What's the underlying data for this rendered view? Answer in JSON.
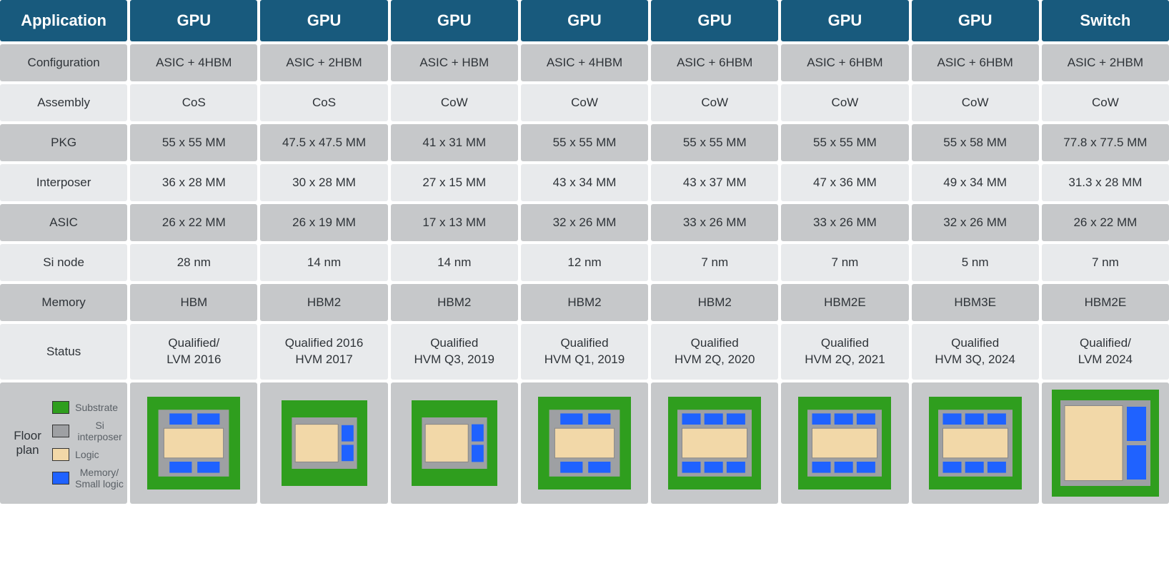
{
  "colors": {
    "header_bg": "#185a7d",
    "row_bg_dark": "#c6c8ca",
    "row_bg_light": "#e8eaec",
    "cell_text": "#2e3338",
    "header_text": "#ffffff",
    "substrate": "#2f9e1e",
    "interposer": "#9ea0a3",
    "logic": "#f2d8a8",
    "memory": "#1f62ff"
  },
  "headers": [
    "Application",
    "GPU",
    "GPU",
    "GPU",
    "GPU",
    "GPU",
    "GPU",
    "GPU",
    "Switch"
  ],
  "rows": [
    {
      "label": "Configuration",
      "cells": [
        "ASIC + 4HBM",
        "ASIC + 2HBM",
        "ASIC + HBM",
        "ASIC + 4HBM",
        "ASIC + 6HBM",
        "ASIC + 6HBM",
        "ASIC + 6HBM",
        "ASIC + 2HBM"
      ]
    },
    {
      "label": "Assembly",
      "cells": [
        "CoS",
        "CoS",
        "CoW",
        "CoW",
        "CoW",
        "CoW",
        "CoW",
        "CoW"
      ]
    },
    {
      "label": "PKG",
      "cells": [
        "55 x 55 MM",
        "47.5 x 47.5 MM",
        "41 x 31 MM",
        "55 x 55 MM",
        "55 x 55 MM",
        "55 x 55 MM",
        "55 x 58 MM",
        "77.8 x 77.5 MM"
      ]
    },
    {
      "label": "Interposer",
      "cells": [
        "36 x 28 MM",
        "30 x 28 MM",
        "27 x 15 MM",
        "43 x 34 MM",
        "43 x 37 MM",
        "47 x 36 MM",
        "49 x 34 MM",
        "31.3 x 28 MM"
      ]
    },
    {
      "label": "ASIC",
      "cells": [
        "26 x 22 MM",
        "26 x 19 MM",
        "17 x 13 MM",
        "32 x 26 MM",
        "33 x 26 MM",
        "33 x 26 MM",
        "32 x 26 MM",
        "26 x 22 MM"
      ]
    },
    {
      "label": "Si node",
      "cells": [
        "28 nm",
        "14 nm",
        "14 nm",
        "12 nm",
        "7 nm",
        "7 nm",
        "5 nm",
        "7 nm"
      ]
    },
    {
      "label": "Memory",
      "cells": [
        "HBM",
        "HBM2",
        "HBM2",
        "HBM2",
        "HBM2",
        "HBM2E",
        "HBM3E",
        "HBM2E"
      ]
    },
    {
      "label": "Status",
      "cells": [
        "Qualified/\nLVM 2016",
        "Qualified 2016\nHVM 2017",
        "Qualified\nHVM Q3, 2019",
        "Qualified\nHVM Q1, 2019",
        "Qualified\nHVM 2Q, 2020",
        "Qualified\nHVM 2Q, 2021",
        "Qualified\nHVM 3Q, 2024",
        "Qualified/\nLVM 2024"
      ]
    }
  ],
  "floorplan": {
    "label": "Floor plan",
    "legend": [
      {
        "key": "substrate",
        "label": "Substrate"
      },
      {
        "key": "interposer",
        "label": "Si interposer"
      },
      {
        "key": "logic",
        "label": "Logic"
      },
      {
        "key": "memory",
        "label": "Memory/\nSmall logic"
      }
    ],
    "diagrams": [
      {
        "type": "hbm4",
        "svg_size": 130,
        "substrate": 130
      },
      {
        "type": "hbm2_right",
        "svg_size": 120,
        "substrate": 120,
        "split": false
      },
      {
        "type": "hbm2_right",
        "svg_size": 120,
        "substrate": 120,
        "split": true
      },
      {
        "type": "hbm4",
        "svg_size": 130,
        "substrate": 130
      },
      {
        "type": "hbm6",
        "svg_size": 130,
        "substrate": 130
      },
      {
        "type": "hbm6",
        "svg_size": 130,
        "substrate": 130
      },
      {
        "type": "hbm6",
        "svg_size": 130,
        "substrate": 130
      },
      {
        "type": "switch2",
        "svg_size": 150,
        "substrate": 150
      }
    ]
  }
}
